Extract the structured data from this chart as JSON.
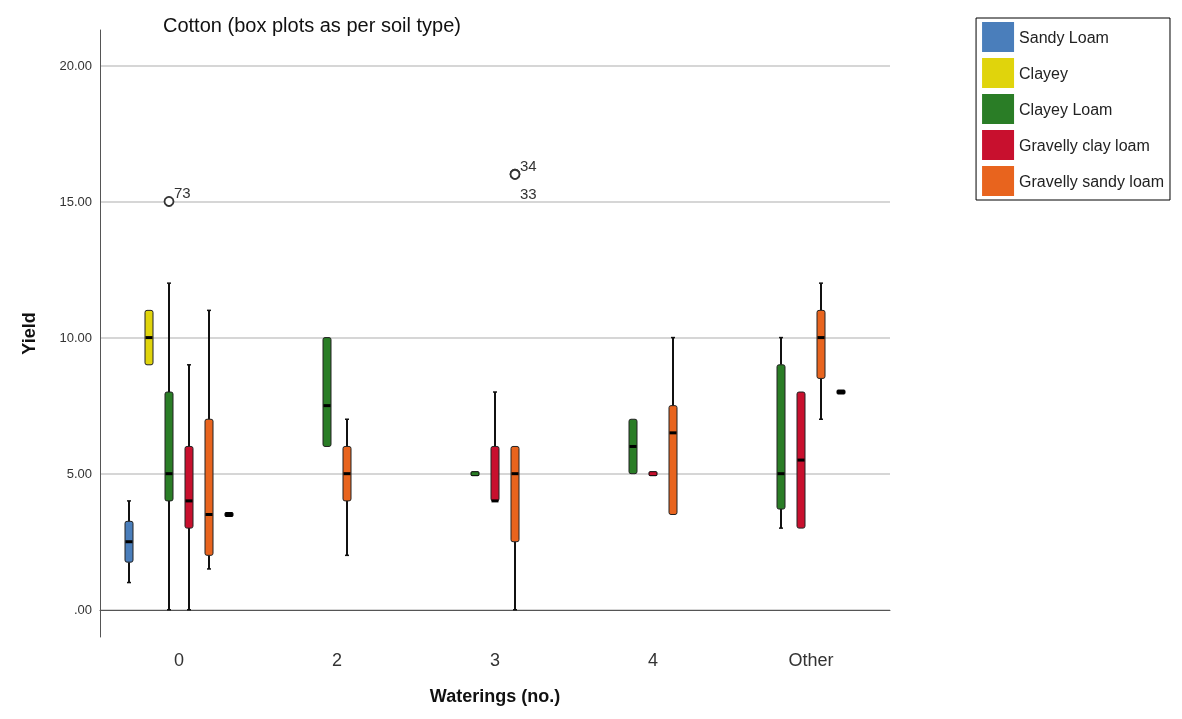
{
  "chart_data": {
    "type": "box",
    "title": "Cotton (box plots as per soil type)",
    "xlabel": "Waterings (no.)",
    "ylabel": "Yield",
    "categories": [
      "0",
      "2",
      "3",
      "4",
      "Other"
    ],
    "ylim": [
      -1,
      21.3
    ],
    "yticks": [
      {
        "value": 0,
        "label": ".00"
      },
      {
        "value": 5,
        "label": "5.00"
      },
      {
        "value": 10,
        "label": "10.00"
      },
      {
        "value": 15,
        "label": "15.00"
      },
      {
        "value": 20,
        "label": "20.00"
      }
    ],
    "grid": "y",
    "legend": "top right",
    "series": [
      {
        "name": "Sandy Loam",
        "color": "#4a7ebb",
        "boxes": [
          {
            "low": 1,
            "q1": 1.75,
            "median": 2.5,
            "q3": 3.25,
            "high": 4
          },
          null,
          null,
          null,
          null
        ]
      },
      {
        "name": "Clayey",
        "color": "#e0d40c",
        "boxes": [
          {
            "low": 9,
            "q1": 9,
            "median": 10,
            "q3": 11,
            "high": 11
          },
          null,
          null,
          null,
          null
        ]
      },
      {
        "name": "Clayey Loam",
        "color": "#2a7d26",
        "boxes": [
          {
            "low": 0,
            "q1": 4,
            "median": 5,
            "q3": 8,
            "high": 12,
            "outliers": [
              15
            ]
          },
          {
            "low": 6,
            "q1": 6,
            "median": 7.5,
            "q3": 10,
            "high": 10
          },
          {
            "low": 5,
            "q1": 5,
            "median": 5,
            "q3": 5,
            "high": 5
          },
          {
            "low": 5,
            "q1": 5,
            "median": 6,
            "q3": 7,
            "high": 7
          },
          {
            "low": 3,
            "q1": 3.7,
            "median": 5,
            "q3": 9,
            "high": 10
          }
        ]
      },
      {
        "name": "Gravelly clay loam",
        "color": "#c8102e",
        "boxes": [
          {
            "low": 0,
            "q1": 3,
            "median": 4,
            "q3": 6,
            "high": 9
          },
          null,
          {
            "low": 4,
            "q1": 4,
            "median": 4,
            "q3": 6,
            "high": 8
          },
          {
            "low": 5,
            "q1": 5,
            "median": 5,
            "q3": 5,
            "high": 5
          },
          {
            "low": 3,
            "q1": 3,
            "median": 5.5,
            "q3": 8,
            "high": 8
          }
        ]
      },
      {
        "name": "Gravelly sandy loam",
        "color": "#e8641e",
        "boxes": [
          {
            "low": 1.5,
            "q1": 2,
            "median": 3.5,
            "q3": 7,
            "high": 11
          },
          {
            "low": 2,
            "q1": 4,
            "median": 5,
            "q3": 6,
            "high": 7
          },
          {
            "low": 0,
            "q1": 2.5,
            "median": 5,
            "q3": 6,
            "high": 6,
            "outliers": [
              16,
              16
            ]
          },
          {
            "low": 3.5,
            "q1": 3.5,
            "median": 6.5,
            "q3": 7.5,
            "high": 10
          },
          {
            "low": 7,
            "q1": 8.5,
            "median": 10,
            "q3": 11,
            "high": 12
          }
        ]
      },
      {
        "color": "#000000",
        "boxes": [
          {
            "low": 3.5,
            "q1": 3.5,
            "median": 3.5,
            "q3": 3.5,
            "high": 3.5
          },
          null,
          null,
          null,
          {
            "low": 8,
            "q1": 8,
            "median": 8,
            "q3": 8,
            "high": 8
          }
        ]
      }
    ],
    "annotations": [
      "73",
      "34",
      "33"
    ]
  }
}
